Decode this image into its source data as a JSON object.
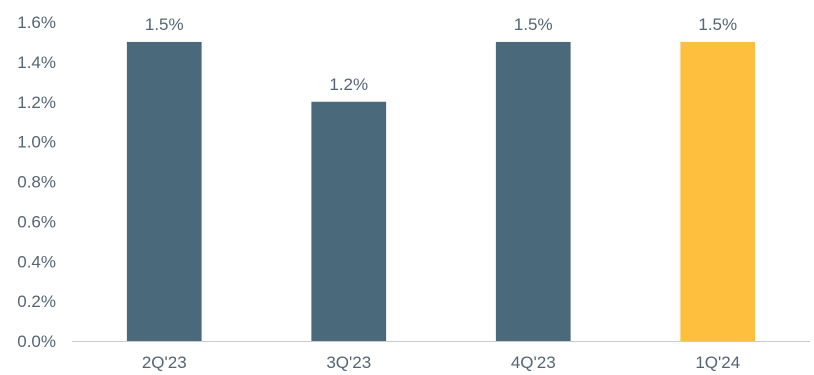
{
  "chart_data": {
    "type": "bar",
    "categories": [
      "2Q'23",
      "3Q'23",
      "4Q'23",
      "1Q'24"
    ],
    "values": [
      1.5,
      1.2,
      1.5,
      1.5
    ],
    "data_labels": [
      "1.5%",
      "1.2%",
      "1.5%",
      "1.5%"
    ],
    "title": "",
    "xlabel": "",
    "ylabel": "",
    "ylim": [
      0,
      1.6
    ],
    "yticks": [
      0.0,
      0.2,
      0.4,
      0.6,
      0.8,
      1.0,
      1.2,
      1.4,
      1.6
    ],
    "ytick_labels": [
      "0.0%",
      "0.2%",
      "0.4%",
      "0.6%",
      "0.8%",
      "1.0%",
      "1.2%",
      "1.4%",
      "1.6%"
    ],
    "grid": false,
    "legend": "none",
    "colors": {
      "default_bar": "#4a6a7c",
      "highlight_bar": "#fdbf3d",
      "text": "#556575",
      "axis": "#c8ccd0"
    },
    "highlight_index": 3
  }
}
